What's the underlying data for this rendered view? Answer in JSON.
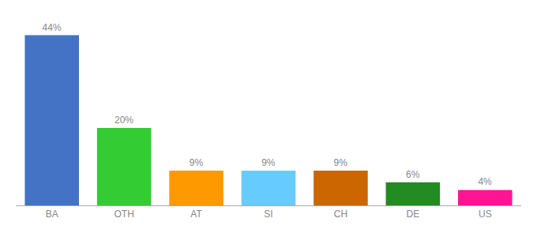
{
  "chart_data": {
    "type": "bar",
    "categories": [
      "BA",
      "OTH",
      "AT",
      "SI",
      "CH",
      "DE",
      "US"
    ],
    "values": [
      44,
      20,
      9,
      9,
      9,
      6,
      4
    ],
    "value_labels": [
      "44%",
      "20%",
      "9%",
      "9%",
      "9%",
      "6%",
      "4%"
    ],
    "data_labels": true,
    "colors": [
      "#4472c4",
      "#33cc33",
      "#ff9900",
      "#66ccff",
      "#cc6600",
      "#228B22",
      "#ff1493"
    ],
    "ylim": [
      0,
      48
    ],
    "grid": false,
    "tick_labels": "x"
  }
}
